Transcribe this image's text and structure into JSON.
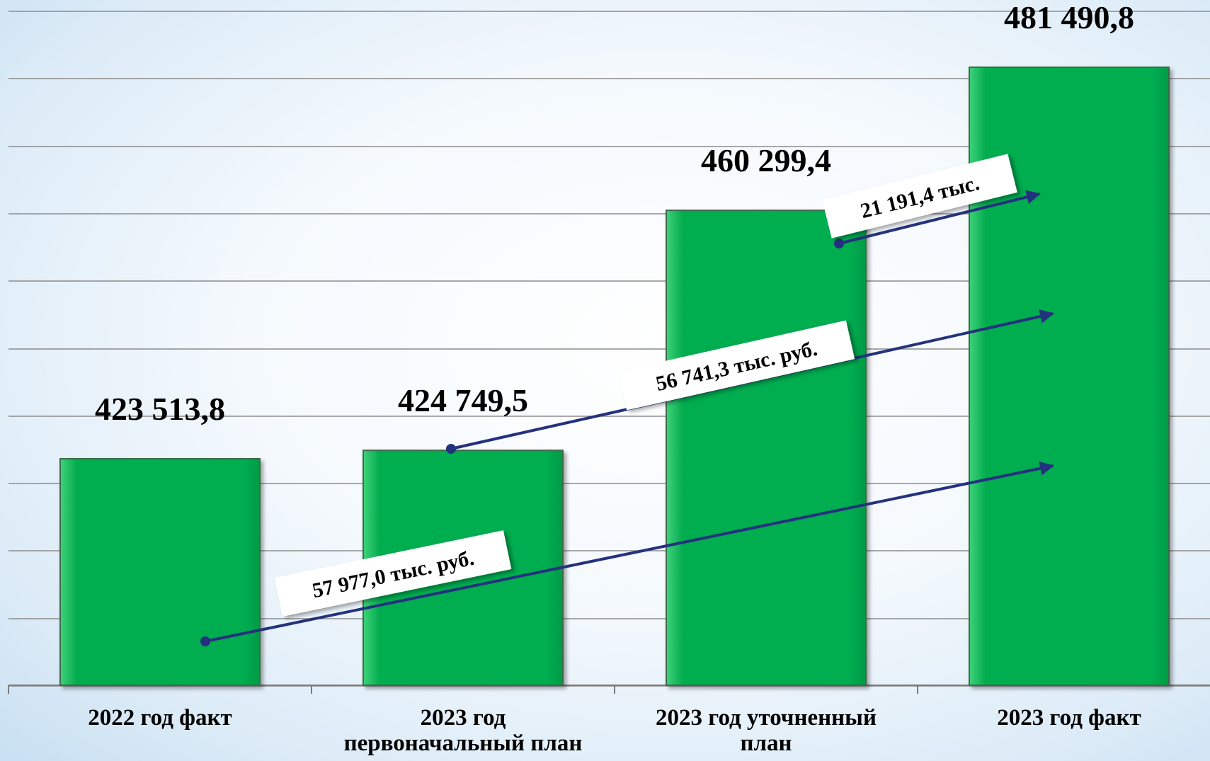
{
  "chart_data": {
    "type": "bar",
    "categories": [
      "2022 год факт",
      "2023 год\nпервоначальный план",
      "2023 год уточненный\nплан",
      "2023 год факт"
    ],
    "values": [
      423513.8,
      424749.5,
      460299.4,
      481490.8
    ],
    "data_labels": [
      "423 513,8",
      "424 749,5",
      "460 299,4",
      "481 490,8"
    ],
    "bar_color": "#06ad50",
    "annotations": [
      {
        "from_category": 0,
        "to_category": 3,
        "text": "57 977,0 тыс. руб."
      },
      {
        "from_category": 1,
        "to_category": 3,
        "text": "56 741,3 тыс. руб."
      },
      {
        "from_category": 2,
        "to_category": 3,
        "text": "21 191,4 тыс."
      }
    ],
    "arrow_color": "#24327e",
    "grid": true,
    "legend": "none"
  }
}
